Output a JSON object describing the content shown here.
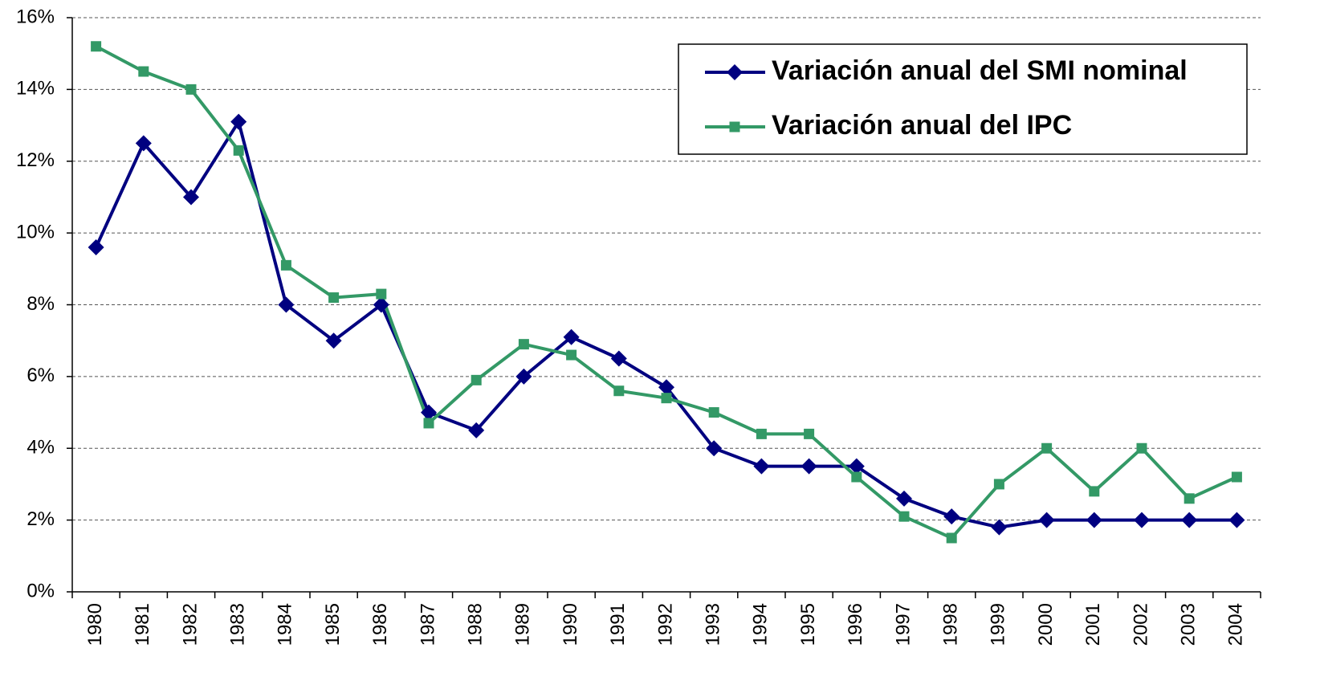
{
  "chart_data": {
    "type": "line",
    "categories": [
      "1980",
      "1981",
      "1982",
      "1983",
      "1984",
      "1985",
      "1986",
      "1987",
      "1988",
      "1989",
      "1990",
      "1991",
      "1992",
      "1993",
      "1994",
      "1995",
      "1996",
      "1997",
      "1998",
      "1999",
      "2000",
      "2001",
      "2002",
      "2003",
      "2004"
    ],
    "series": [
      {
        "name": "Variación anual del SMI nominal",
        "color": "#000080",
        "marker": "diamond",
        "values": [
          9.6,
          12.5,
          11.0,
          13.1,
          8.0,
          7.0,
          8.0,
          5.0,
          4.5,
          6.0,
          7.1,
          6.5,
          5.7,
          4.0,
          3.5,
          3.5,
          3.5,
          2.6,
          2.1,
          1.8,
          2.0,
          2.0,
          2.0,
          2.0,
          2.0
        ]
      },
      {
        "name": "Variación anual del IPC",
        "color": "#339966",
        "marker": "square",
        "values": [
          15.2,
          14.5,
          14.0,
          12.3,
          9.1,
          8.2,
          8.3,
          4.7,
          5.9,
          6.9,
          6.6,
          5.6,
          5.4,
          5.0,
          4.4,
          4.4,
          3.2,
          2.1,
          1.5,
          3.0,
          4.0,
          2.8,
          4.0,
          2.6,
          3.2
        ]
      }
    ],
    "ylim": [
      0,
      16
    ],
    "yticks": [
      {
        "value": 0,
        "label": "0%"
      },
      {
        "value": 2,
        "label": "2%"
      },
      {
        "value": 4,
        "label": "4%"
      },
      {
        "value": 6,
        "label": "6%"
      },
      {
        "value": 8,
        "label": "8%"
      },
      {
        "value": 10,
        "label": "10%"
      },
      {
        "value": 12,
        "label": "12%"
      },
      {
        "value": 14,
        "label": "14%"
      },
      {
        "value": 16,
        "label": "16%"
      }
    ],
    "grid": true,
    "legend": "upper right"
  }
}
